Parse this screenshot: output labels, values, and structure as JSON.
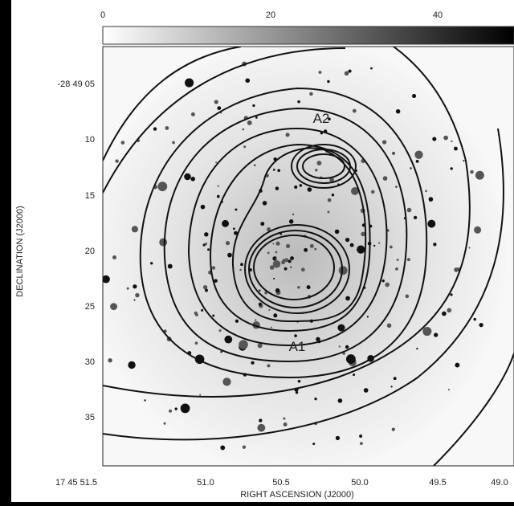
{
  "colorbar": {
    "ticks": [
      "0",
      "20",
      "40"
    ]
  },
  "y_axis": {
    "label": "DECLINATION (J2000)",
    "ticks": [
      "-28 49 05",
      "10",
      "15",
      "20",
      "25",
      "30",
      "35"
    ]
  },
  "x_axis": {
    "label": "RIGHT ASCENSION (J2000)",
    "ticks": [
      "17 45 51.5",
      "51.0",
      "50.5",
      "50.0",
      "49.5",
      "49.0"
    ]
  },
  "annotations": [
    "A2",
    "A1"
  ]
}
